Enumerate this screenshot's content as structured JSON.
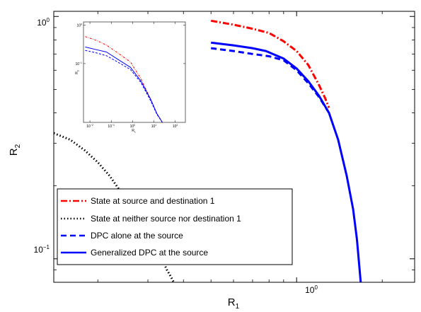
{
  "chart_data": {
    "type": "line",
    "title": "",
    "xlabel": "R",
    "xlabel_sub": "1",
    "ylabel": "R",
    "ylabel_sub": "2",
    "xscale": "log",
    "yscale": "log",
    "xlim": [
      0.14,
      2.6
    ],
    "ylim": [
      0.08,
      1.05
    ],
    "x_tick_labels": [
      {
        "value": 1,
        "base": "10",
        "exp": "0"
      }
    ],
    "y_tick_labels": [
      {
        "value": 1,
        "base": "10",
        "exp": "0"
      },
      {
        "value": 0.1,
        "base": "10",
        "exp": "−1"
      }
    ],
    "x_minor_ticks": [
      0.2,
      0.3,
      0.4,
      0.5,
      0.6,
      0.7,
      0.8,
      0.9,
      2
    ],
    "y_minor_ticks": [
      0.09,
      0.2,
      0.3,
      0.4,
      0.5,
      0.6,
      0.7,
      0.8,
      0.9
    ],
    "grid": false,
    "legend_position": "bottom-left",
    "series": [
      {
        "name": "State at source and destination 1",
        "color": "#ff0000",
        "style": "dashdot",
        "x": [
          0.5,
          0.6,
          0.7,
          0.8,
          0.9,
          1.0,
          1.1,
          1.2,
          1.26,
          1.3
        ],
        "y": [
          0.96,
          0.925,
          0.89,
          0.855,
          0.79,
          0.72,
          0.63,
          0.52,
          0.46,
          0.42
        ]
      },
      {
        "name": "State at neither source nor destination 1",
        "color": "#000000",
        "style": "dotted",
        "x": [
          0.14,
          0.16,
          0.18,
          0.2,
          0.22,
          0.24,
          0.27,
          0.29,
          0.31,
          0.33,
          0.35,
          0.36,
          0.37
        ],
        "y": [
          0.33,
          0.31,
          0.28,
          0.25,
          0.22,
          0.19,
          0.155,
          0.13,
          0.115,
          0.105,
          0.09,
          0.085,
          0.08
        ]
      },
      {
        "name": "DPC alone at the source",
        "color": "#0000ff",
        "style": "dashed",
        "x": [
          0.5,
          0.6,
          0.7,
          0.8,
          0.9,
          1.0,
          1.1,
          1.2,
          1.3
        ],
        "y": [
          0.74,
          0.72,
          0.7,
          0.685,
          0.66,
          0.6,
          0.53,
          0.465,
          0.4
        ]
      },
      {
        "name": "Generalized DPC at the source",
        "color": "#0000ff",
        "style": "solid",
        "x": [
          0.5,
          0.6,
          0.7,
          0.78,
          0.9,
          1.0,
          1.1,
          1.2,
          1.3,
          1.4,
          1.5,
          1.58,
          1.63,
          1.68
        ],
        "y": [
          0.78,
          0.76,
          0.74,
          0.72,
          0.67,
          0.61,
          0.54,
          0.47,
          0.4,
          0.31,
          0.22,
          0.16,
          0.12,
          0.08
        ]
      }
    ],
    "inset": {
      "xlabel": "R",
      "xlabel_sub": "1",
      "ylabel": "R",
      "ylabel_sub": "2",
      "xscale": "log",
      "yscale": "log",
      "xlim": [
        0.005,
        300
      ],
      "ylim": [
        0.003,
        1.2
      ],
      "x_tick_labels": [
        {
          "value": 0.01,
          "base": "10",
          "exp": "−2"
        },
        {
          "value": 0.1,
          "base": "10",
          "exp": "−1"
        },
        {
          "value": 1,
          "base": "10",
          "exp": "0"
        },
        {
          "value": 10,
          "base": "10",
          "exp": "1"
        },
        {
          "value": 100,
          "base": "10",
          "exp": "2"
        }
      ],
      "y_tick_labels": [
        {
          "value": 1,
          "base": "10",
          "exp": "0"
        },
        {
          "value": 0.1,
          "base": "10",
          "exp": "−1"
        }
      ],
      "series": [
        {
          "name": "State at source and destination 1",
          "color": "#ff0000",
          "style": "dashdot",
          "x": [
            0.006,
            0.02,
            0.06,
            0.2,
            0.8,
            2.5,
            7,
            14,
            25
          ],
          "y": [
            0.5,
            0.4,
            0.3,
            0.19,
            0.11,
            0.04,
            0.012,
            0.005,
            0.003
          ]
        },
        {
          "name": "DPC alone at the source",
          "color": "#0000ff",
          "style": "dashed",
          "x": [
            0.006,
            0.02,
            0.06,
            0.2,
            0.8,
            2.5,
            7,
            14,
            25
          ],
          "y": [
            0.22,
            0.19,
            0.16,
            0.11,
            0.07,
            0.032,
            0.011,
            0.0048,
            0.003
          ]
        },
        {
          "name": "Generalized DPC at the source",
          "color": "#0000ff",
          "style": "solid",
          "x": [
            0.006,
            0.02,
            0.06,
            0.2,
            0.8,
            2.5,
            7,
            14,
            25
          ],
          "y": [
            0.27,
            0.23,
            0.2,
            0.13,
            0.08,
            0.035,
            0.012,
            0.005,
            0.003
          ]
        }
      ]
    }
  }
}
